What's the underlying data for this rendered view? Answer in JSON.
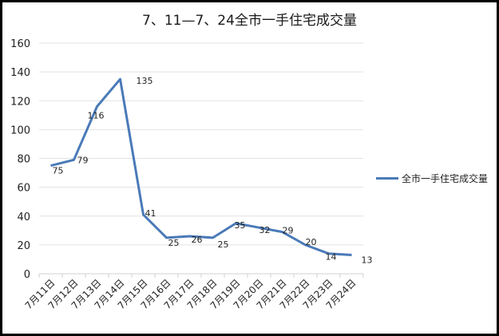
{
  "chart_data": {
    "type": "line",
    "title": "7、11—7、24全市一手住宅成交量",
    "xlabel": "",
    "ylabel": "",
    "categories": [
      "7月11日",
      "7月12日",
      "7月13日",
      "7月14日",
      "7月15日",
      "7月16日",
      "7月17日",
      "7月18日",
      "7月19日",
      "7月20日",
      "7月21日",
      "7月22日",
      "7月23日",
      "7月24日"
    ],
    "series": [
      {
        "name": "全市一手住宅成交量",
        "color": "#4a7ab8",
        "values": [
          75,
          79,
          116,
          135,
          41,
          25,
          26,
          25,
          35,
          32,
          29,
          20,
          14,
          13
        ]
      }
    ],
    "ylim": [
      0,
      160
    ],
    "yticks": [
      0,
      20,
      40,
      60,
      80,
      100,
      120,
      140,
      160
    ],
    "grid": true,
    "legend_position": "right",
    "data_labels": true
  },
  "title": "7、11—7、24全市一手住宅成交量",
  "legend": {
    "label": "全市一手住宅成交量"
  }
}
